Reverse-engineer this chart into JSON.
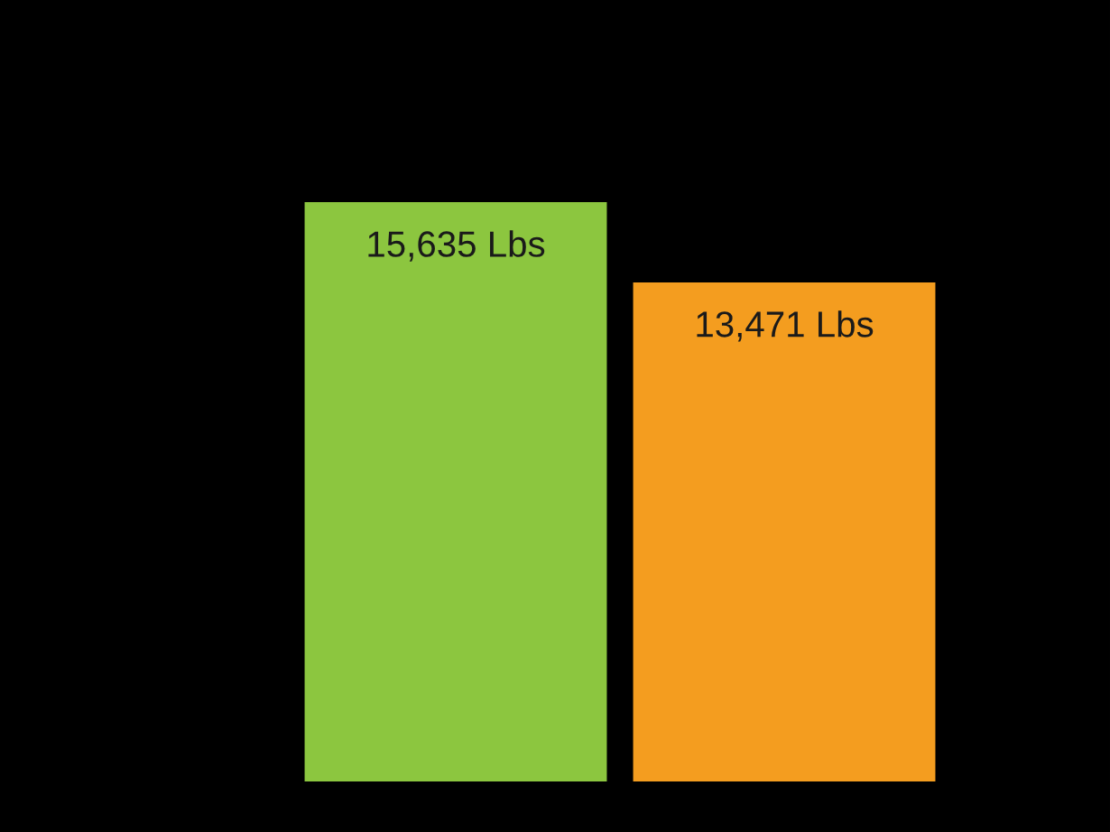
{
  "chart_data": {
    "type": "bar",
    "categories": [
      null,
      null
    ],
    "values": [
      15635,
      13471
    ],
    "colors": [
      "#8cc63f",
      "#f49d1f"
    ],
    "value_labels": [
      "15,635 Lbs",
      "13,471 Lbs"
    ]
  }
}
